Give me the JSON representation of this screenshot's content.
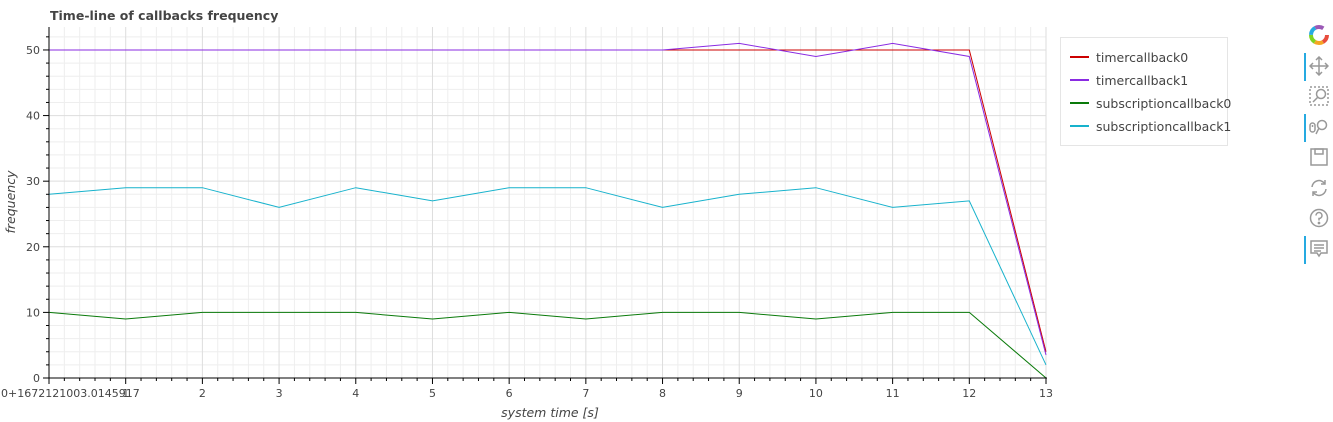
{
  "chart_data": {
    "type": "line",
    "title": "Time-line of callbacks frequency",
    "xlabel": "system time [s]",
    "ylabel": "frequency",
    "x_first_tick_label": "0+1672121003.0145917",
    "x": [
      0,
      1,
      2,
      3,
      4,
      5,
      6,
      7,
      8,
      9,
      10,
      11,
      12,
      13
    ],
    "xlim": [
      0,
      13
    ],
    "ylim": [
      0,
      53.5
    ],
    "xticks": [
      0,
      1,
      2,
      3,
      4,
      5,
      6,
      7,
      8,
      9,
      10,
      11,
      12,
      13
    ],
    "yticks": [
      0,
      10,
      20,
      30,
      40,
      50
    ],
    "grid": true,
    "legend_position": "right",
    "series": [
      {
        "name": "timercallback0",
        "color": "#cc0000",
        "values": [
          50,
          50,
          50,
          50,
          50,
          50,
          50,
          50,
          50,
          50,
          50,
          50,
          50,
          4
        ]
      },
      {
        "name": "timercallback1",
        "color": "#8a2be2",
        "values": [
          50,
          50,
          50,
          50,
          50,
          50,
          50,
          50,
          50,
          51,
          49,
          51,
          49,
          3.5
        ]
      },
      {
        "name": "subscriptioncallback0",
        "color": "#0a7a0a",
        "values": [
          10,
          9,
          10,
          10,
          10,
          9,
          10,
          9,
          10,
          10,
          9,
          10,
          10,
          0
        ]
      },
      {
        "name": "subscriptioncallback1",
        "color": "#17b2cc",
        "values": [
          28,
          29,
          29,
          26,
          29,
          27,
          29,
          29,
          26,
          28,
          29,
          26,
          27,
          2
        ]
      }
    ]
  },
  "toolbar": {
    "tools": [
      "bokeh-logo-icon",
      "pan-icon",
      "box-zoom-icon",
      "wheel-zoom-icon",
      "save-icon",
      "reset-icon",
      "help-icon",
      "hover-icon"
    ]
  }
}
